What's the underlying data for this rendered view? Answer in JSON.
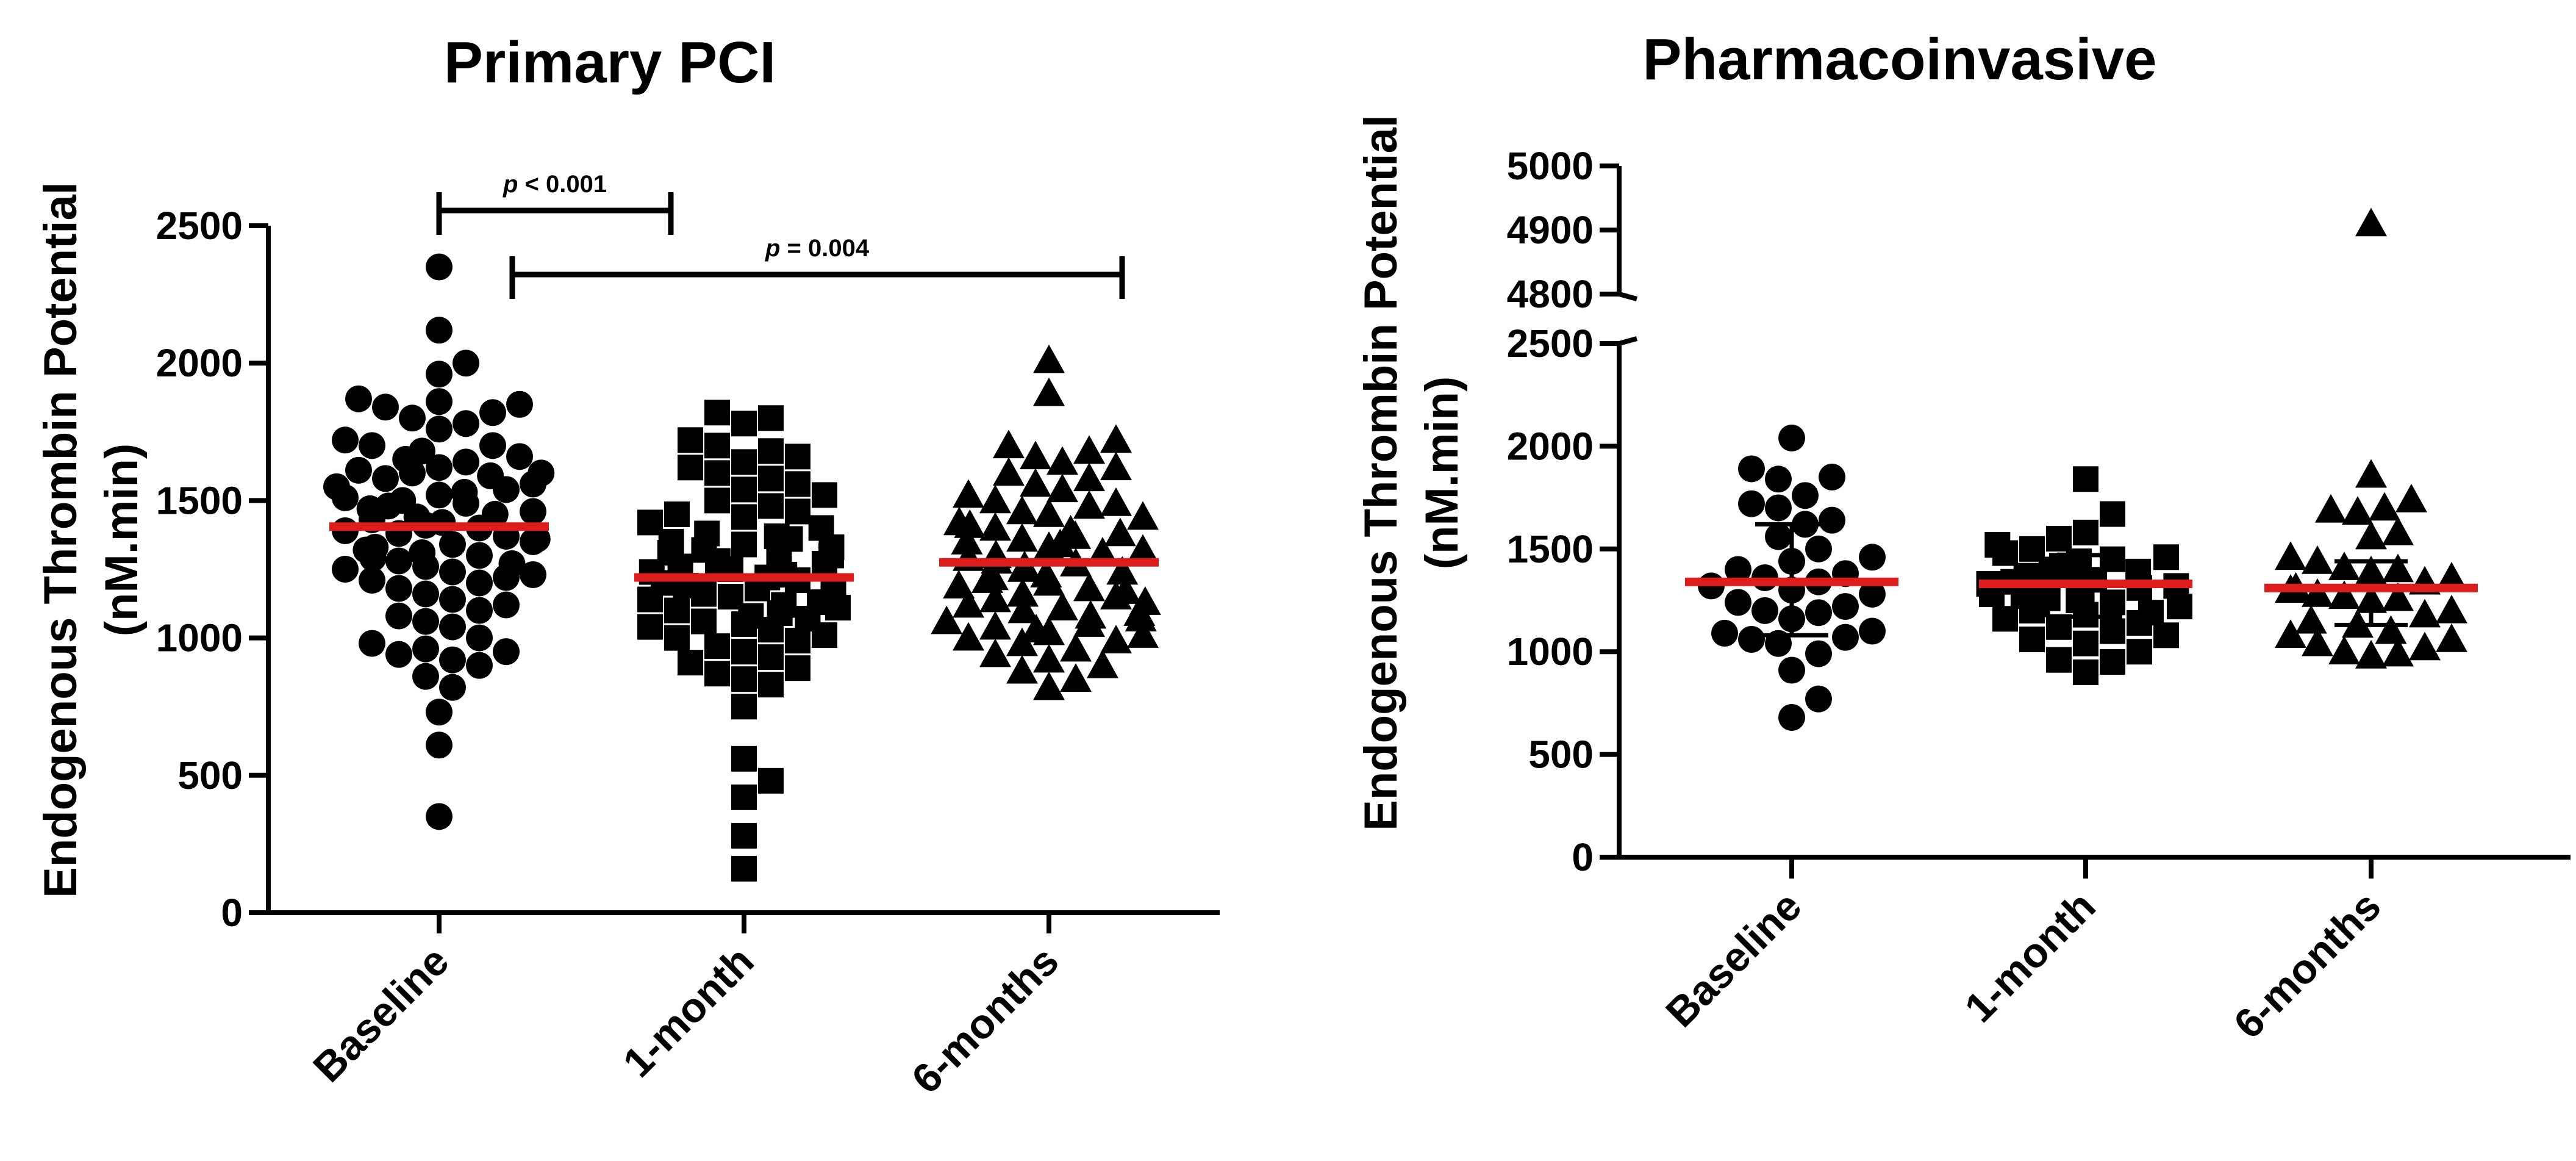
{
  "chart_data": [
    {
      "type": "scatter",
      "title": "Primary PCI",
      "ylabel_line1": "Endogenous Thrombin Potential",
      "ylabel_line2": "(nM.min)",
      "xlabel": "",
      "ylim": [
        0,
        2500
      ],
      "yticks": [
        0,
        500,
        1000,
        1500,
        2000,
        2500
      ],
      "categories": [
        "Baseline",
        "1-month",
        "6-months"
      ],
      "marker_colors": {
        "point": "#000000",
        "median": "#dd1c1c"
      },
      "series": [
        {
          "name": "Baseline",
          "marker": "circle",
          "median": 1405,
          "values": [
            2350,
            2120,
            2000,
            1960,
            1870,
            1860,
            1850,
            1840,
            1820,
            1800,
            1780,
            1760,
            1720,
            1700,
            1700,
            1680,
            1660,
            1650,
            1640,
            1620,
            1610,
            1600,
            1600,
            1590,
            1580,
            1560,
            1550,
            1540,
            1530,
            1520,
            1510,
            1500,
            1490,
            1480,
            1470,
            1460,
            1450,
            1440,
            1430,
            1420,
            1410,
            1400,
            1390,
            1380,
            1370,
            1360,
            1350,
            1340,
            1330,
            1320,
            1310,
            1300,
            1290,
            1280,
            1270,
            1260,
            1250,
            1240,
            1230,
            1220,
            1210,
            1200,
            1180,
            1160,
            1140,
            1120,
            1100,
            1080,
            1060,
            1040,
            1000,
            980,
            960,
            950,
            940,
            920,
            900,
            860,
            820,
            730,
            610,
            350
          ]
        },
        {
          "name": "1-month",
          "marker": "square",
          "median": 1220,
          "values": [
            1820,
            1800,
            1780,
            1720,
            1700,
            1680,
            1660,
            1640,
            1620,
            1600,
            1580,
            1560,
            1540,
            1520,
            1500,
            1480,
            1460,
            1450,
            1440,
            1420,
            1400,
            1380,
            1370,
            1360,
            1350,
            1340,
            1330,
            1320,
            1310,
            1300,
            1290,
            1280,
            1270,
            1260,
            1250,
            1240,
            1230,
            1220,
            1210,
            1200,
            1190,
            1180,
            1170,
            1160,
            1150,
            1140,
            1130,
            1120,
            1110,
            1100,
            1090,
            1080,
            1070,
            1060,
            1050,
            1040,
            1030,
            1010,
            1000,
            990,
            970,
            950,
            930,
            910,
            890,
            870,
            850,
            830,
            750,
            560,
            480,
            420,
            280,
            160
          ]
        },
        {
          "name": "6-months",
          "marker": "triangle",
          "median": 1275,
          "values": [
            2010,
            1890,
            1720,
            1700,
            1680,
            1660,
            1640,
            1620,
            1600,
            1580,
            1560,
            1540,
            1520,
            1500,
            1490,
            1480,
            1460,
            1450,
            1440,
            1420,
            1410,
            1400,
            1390,
            1380,
            1370,
            1360,
            1350,
            1340,
            1330,
            1320,
            1310,
            1300,
            1290,
            1280,
            1270,
            1260,
            1250,
            1240,
            1230,
            1220,
            1210,
            1200,
            1190,
            1180,
            1170,
            1160,
            1150,
            1140,
            1130,
            1120,
            1110,
            1100,
            1090,
            1080,
            1070,
            1060,
            1050,
            1040,
            1030,
            1020,
            1010,
            1000,
            990,
            980,
            960,
            940,
            920,
            900,
            880,
            850,
            820
          ]
        }
      ],
      "annotations": [
        {
          "from": "Baseline",
          "to": "1-month",
          "level": 2500,
          "prefix": "p",
          "text": " < 0.001"
        },
        {
          "from": "Baseline",
          "to": "6-months",
          "level": 2350,
          "prefix": "p",
          "text": " = 0.004"
        }
      ]
    },
    {
      "type": "scatter",
      "title": "Pharmacoinvasive",
      "ylabel_line1": "Endogenous Thrombin Potential",
      "ylabel_line2": "(nM.min)",
      "xlabel": "",
      "ylim_lower": [
        0,
        2500
      ],
      "ylim_upper": [
        4800,
        5000
      ],
      "yticks_lower": [
        0,
        500,
        1000,
        1500,
        2000,
        2500
      ],
      "yticks_upper": [
        4800,
        4900,
        5000
      ],
      "categories": [
        "Baseline",
        "1-month",
        "6-months"
      ],
      "series": [
        {
          "name": "Baseline",
          "marker": "circle",
          "median": 1340,
          "iqr": [
            1080,
            1620
          ],
          "values": [
            2040,
            1890,
            1850,
            1840,
            1760,
            1720,
            1700,
            1640,
            1620,
            1560,
            1500,
            1460,
            1440,
            1400,
            1380,
            1360,
            1340,
            1320,
            1300,
            1280,
            1240,
            1220,
            1200,
            1190,
            1160,
            1100,
            1090,
            1070,
            1060,
            1040,
            990,
            910,
            770,
            680
          ]
        },
        {
          "name": "1-month",
          "marker": "square",
          "median": 1330,
          "iqr": [
            1170,
            1470
          ],
          "values": [
            1840,
            1670,
            1580,
            1550,
            1520,
            1500,
            1480,
            1460,
            1450,
            1440,
            1420,
            1400,
            1390,
            1380,
            1370,
            1360,
            1350,
            1340,
            1330,
            1320,
            1310,
            1300,
            1290,
            1280,
            1270,
            1260,
            1250,
            1240,
            1230,
            1220,
            1200,
            1190,
            1180,
            1160,
            1140,
            1120,
            1100,
            1080,
            1060,
            1040,
            1000,
            960,
            950,
            900
          ]
        },
        {
          "name": "6-months",
          "marker": "triangle",
          "median": 1310,
          "iqr": [
            1130,
            1440
          ],
          "values": [
            4910,
            1860,
            1740,
            1700,
            1690,
            1680,
            1580,
            1560,
            1460,
            1440,
            1410,
            1400,
            1390,
            1360,
            1340,
            1310,
            1300,
            1280,
            1270,
            1260,
            1250,
            1200,
            1180,
            1150,
            1130,
            1100,
            1080,
            1060,
            1040,
            1020,
            1000,
            990,
            980
          ]
        }
      ]
    }
  ]
}
